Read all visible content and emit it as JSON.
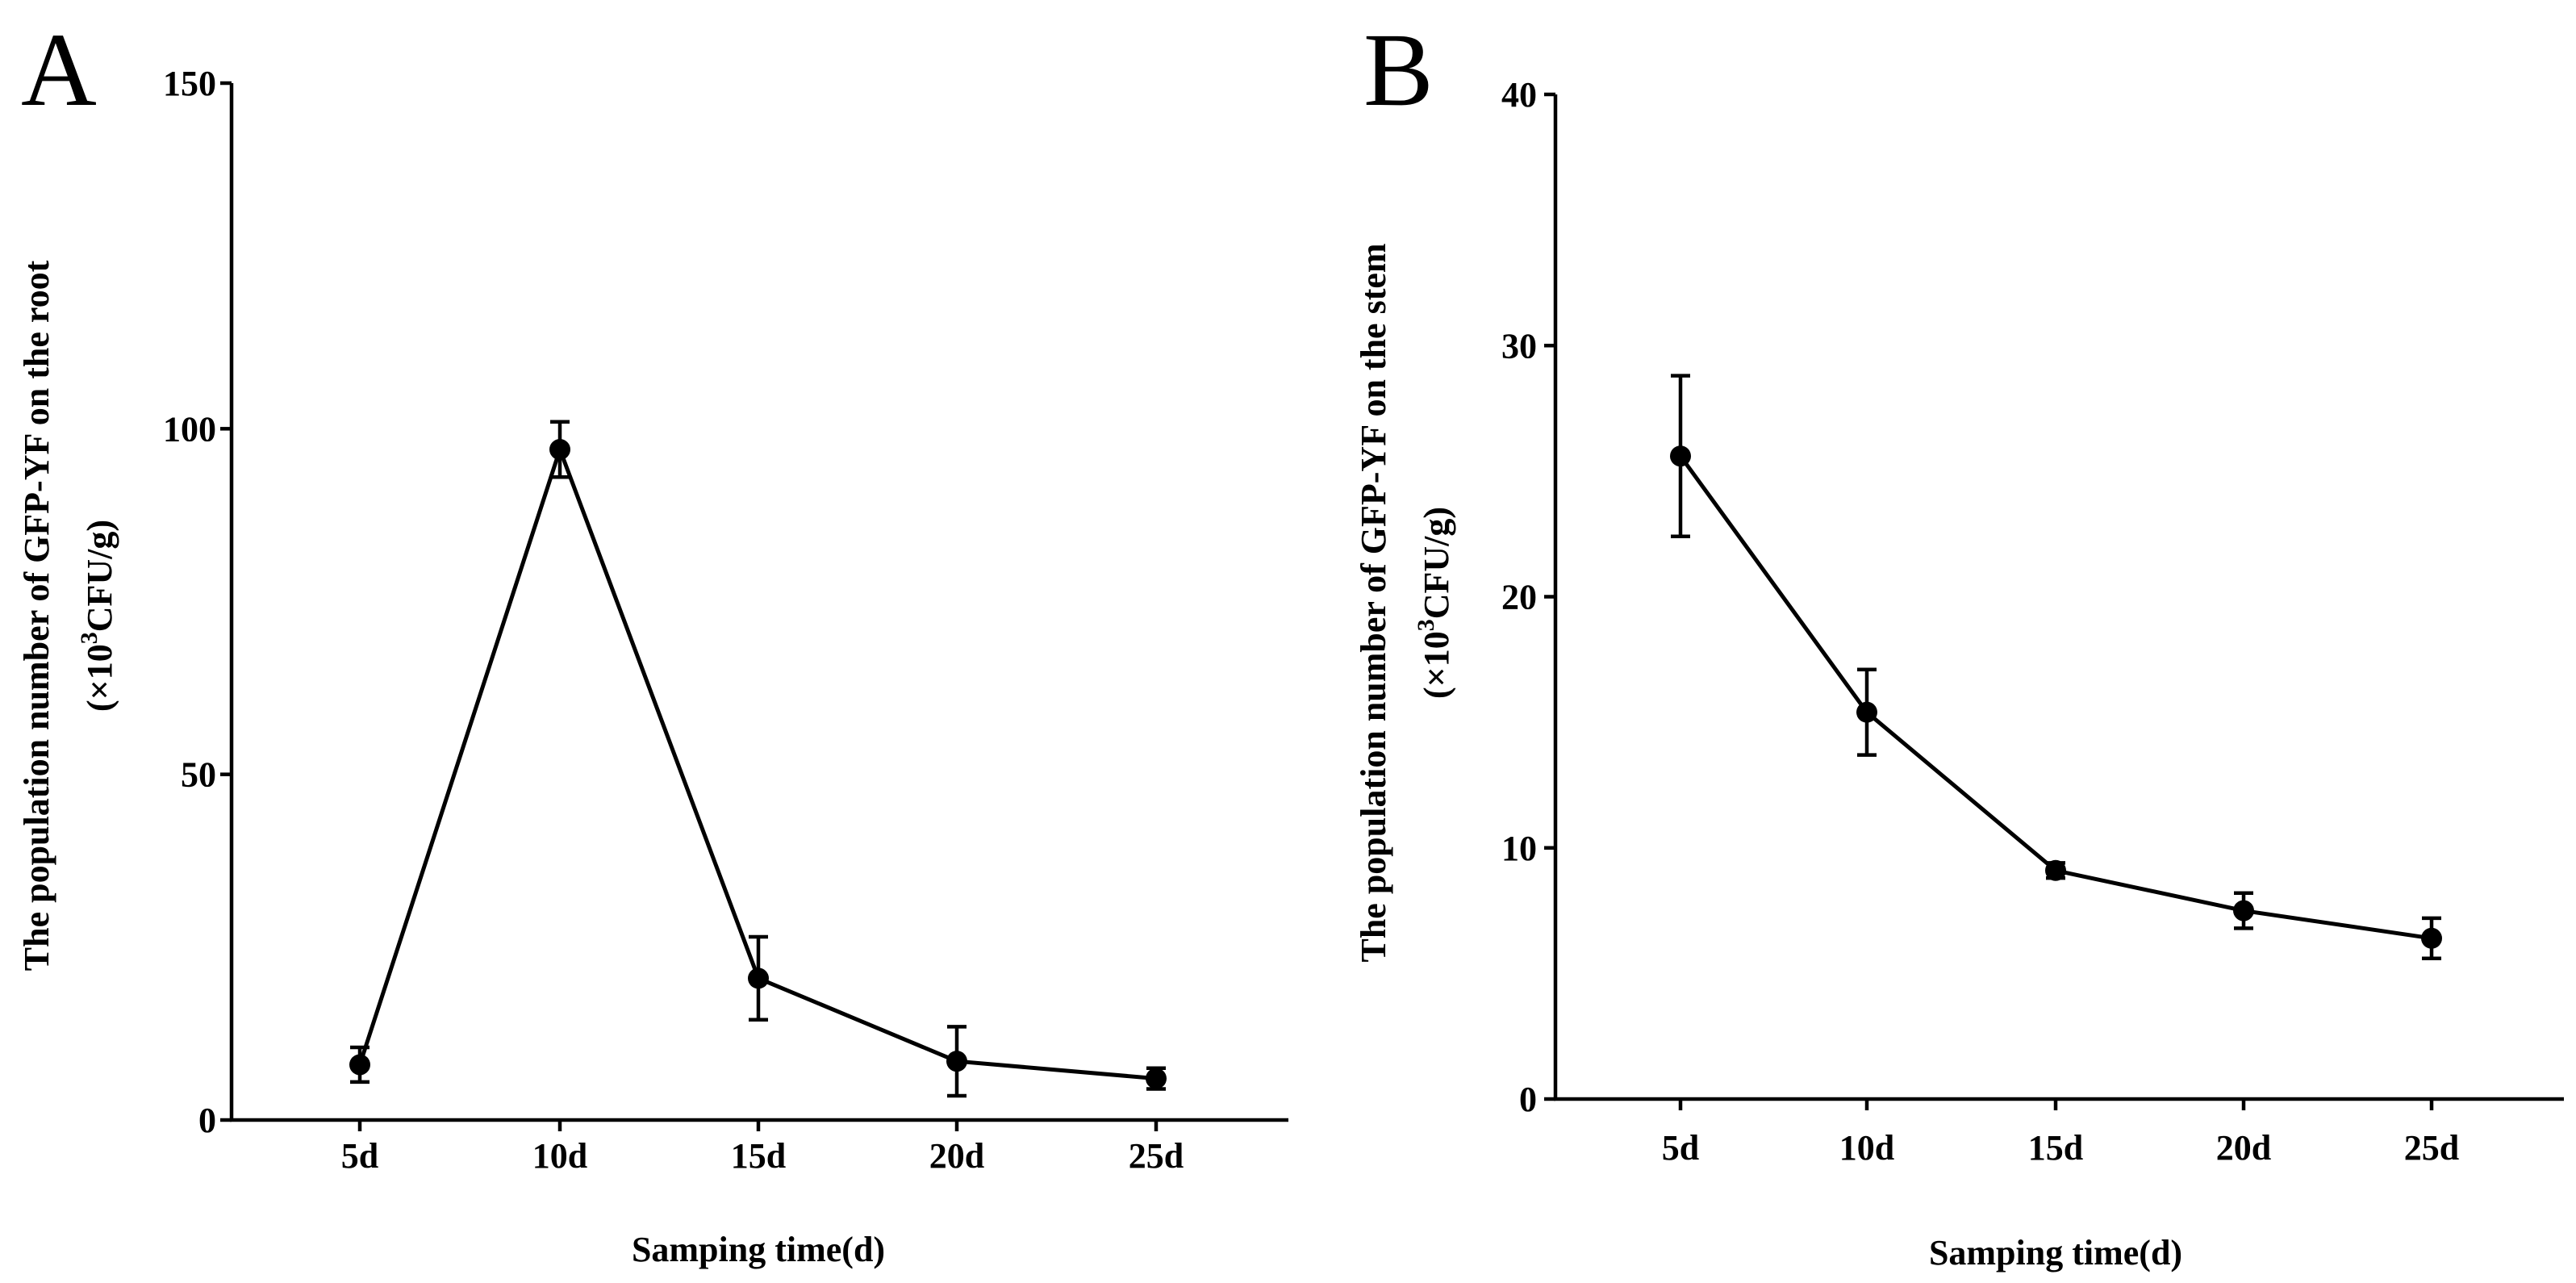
{
  "chart_data": [
    {
      "panel": "A",
      "type": "line",
      "title": "",
      "xlabel": "Samping time(d)",
      "ylabel": "The population number of GFP-YF on the root",
      "ylabel_unit_prefix": "(×10",
      "ylabel_unit_exp": "3",
      "ylabel_unit_suffix": "CFU/g)",
      "categories": [
        "5d",
        "10d",
        "15d",
        "20d",
        "25d"
      ],
      "yticks": [
        "0",
        "50",
        "100",
        "150"
      ],
      "ytick_values": [
        0,
        50,
        100,
        150
      ],
      "ylim": [
        0,
        150
      ],
      "grid": false,
      "series": [
        {
          "name": "GFP-YF root",
          "values": [
            8,
            97,
            20.5,
            8.5,
            6
          ],
          "errors": [
            2.5,
            4,
            6,
            5,
            1.5
          ]
        }
      ]
    },
    {
      "panel": "B",
      "type": "line",
      "title": "",
      "xlabel": "Samping time(d)",
      "ylabel": "The population number of GFP-YF on the stem",
      "ylabel_unit_prefix": "(×10",
      "ylabel_unit_exp": "3",
      "ylabel_unit_suffix": "CFU/g)",
      "categories": [
        "5d",
        "10d",
        "15d",
        "20d",
        "25d"
      ],
      "yticks": [
        "0",
        "10",
        "20",
        "30",
        "40"
      ],
      "ytick_values": [
        0,
        10,
        20,
        30,
        40
      ],
      "ylim": [
        0,
        40
      ],
      "grid": false,
      "series": [
        {
          "name": "GFP-YF stem",
          "values": [
            25.6,
            15.4,
            9.1,
            7.5,
            6.4
          ],
          "errors": [
            3.2,
            1.7,
            0.3,
            0.7,
            0.8
          ]
        }
      ]
    }
  ]
}
